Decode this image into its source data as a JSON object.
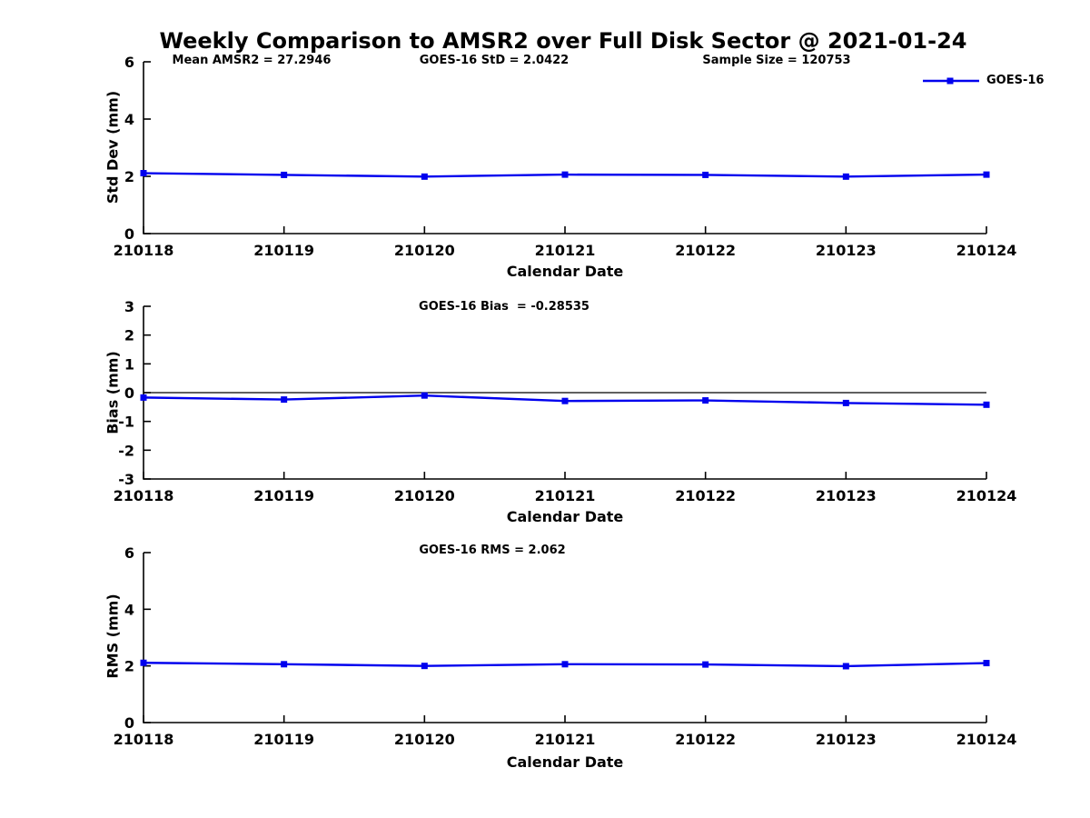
{
  "title": "Weekly Comparison to AMSR2 over Full Disk Sector @ 2021-01-24",
  "header": {
    "annotations": [
      "Mean AMSR2 = 27.2946",
      "GOES-16 StD = 2.0422",
      "Sample Size = 120753"
    ]
  },
  "legend": {
    "label": "GOES-16",
    "color": "#0000EE"
  },
  "colors": {
    "line": "#0000EE",
    "axis": "#000000",
    "background": "#ffffff"
  },
  "chart_data": [
    {
      "type": "line",
      "id": "std-dev",
      "annotation": "",
      "ylabel": "Std Dev (mm)",
      "xlabel": "Calendar Date",
      "ylim": [
        0,
        6
      ],
      "yticks": [
        0,
        2,
        4,
        6
      ],
      "categories": [
        "210118",
        "210119",
        "210120",
        "210121",
        "210122",
        "210123",
        "210124"
      ],
      "zero_line": false,
      "grid": false,
      "legend_position": "top-right-outside",
      "series": [
        {
          "name": "GOES-16",
          "color": "#0000EE",
          "marker": "square",
          "values": [
            2.11,
            2.05,
            1.99,
            2.06,
            2.05,
            1.99,
            2.06
          ]
        }
      ]
    },
    {
      "type": "line",
      "id": "bias",
      "annotation": "GOES-16 Bias  = -0.28535",
      "ylabel": "Bias (mm)",
      "xlabel": "Calendar Date",
      "ylim": [
        -3,
        3
      ],
      "yticks": [
        -3,
        -2,
        -1,
        0,
        1,
        2,
        3
      ],
      "categories": [
        "210118",
        "210119",
        "210120",
        "210121",
        "210122",
        "210123",
        "210124"
      ],
      "zero_line": true,
      "grid": false,
      "series": [
        {
          "name": "GOES-16",
          "color": "#0000EE",
          "marker": "square",
          "values": [
            -0.17,
            -0.24,
            -0.1,
            -0.29,
            -0.27,
            -0.36,
            -0.42
          ]
        }
      ]
    },
    {
      "type": "line",
      "id": "rms",
      "annotation": "GOES-16 RMS = 2.062",
      "ylabel": "RMS (mm)",
      "xlabel": "Calendar Date",
      "ylim": [
        0,
        6
      ],
      "yticks": [
        0,
        2,
        4,
        6
      ],
      "categories": [
        "210118",
        "210119",
        "210120",
        "210121",
        "210122",
        "210123",
        "210124"
      ],
      "zero_line": false,
      "grid": false,
      "series": [
        {
          "name": "GOES-16",
          "color": "#0000EE",
          "marker": "square",
          "values": [
            2.11,
            2.06,
            2.0,
            2.06,
            2.05,
            1.99,
            2.1
          ]
        }
      ]
    }
  ]
}
